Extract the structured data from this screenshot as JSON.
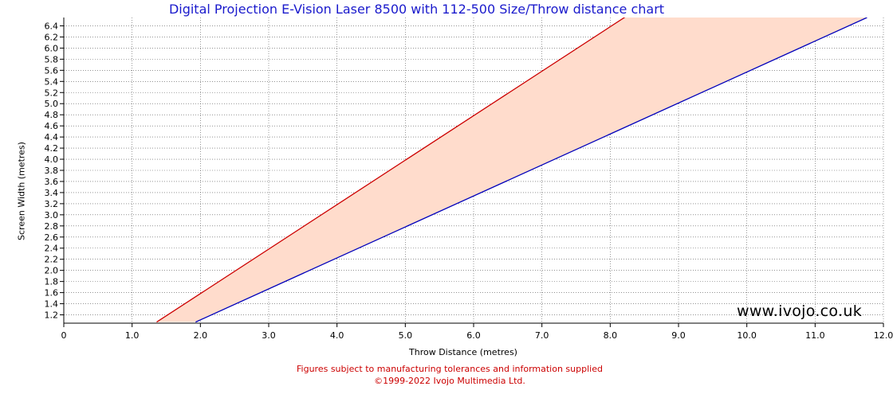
{
  "title": "Digital Projection E-Vision Laser 8500 with 112-500 Size/Throw distance chart",
  "watermark": "www.ivojo.co.uk",
  "footer": {
    "note": "Figures subject to manufacturing tolerances and information supplied",
    "copyright": "©1999-2022 Ivojo Multimedia Ltd."
  },
  "colors": {
    "title": "#1a1acc",
    "min_line": "#cc0000",
    "max_line": "#0000bb",
    "band_fill": "#ffdccc",
    "footer": "#cc0000"
  },
  "chart_data": {
    "type": "area",
    "title": "Digital Projection E-Vision Laser 8500 with 112-500 Size/Throw distance chart",
    "xlabel": "Throw Distance (metres)",
    "ylabel": "Screen Width (metres)",
    "xlim": [
      0,
      12
    ],
    "ylim": [
      1.05,
      6.55
    ],
    "x_ticks": [
      "0",
      "1.0",
      "2.0",
      "3.0",
      "4.0",
      "5.0",
      "6.0",
      "7.0",
      "8.0",
      "9.0",
      "10.0",
      "11.0",
      "12.0"
    ],
    "y_ticks": [
      "1.2",
      "1.4",
      "1.6",
      "1.8",
      "2.0",
      "2.2",
      "2.4",
      "2.6",
      "2.8",
      "3.0",
      "3.2",
      "3.4",
      "3.6",
      "3.8",
      "4.0",
      "4.2",
      "4.4",
      "4.6",
      "4.8",
      "5.0",
      "5.2",
      "5.4",
      "5.6",
      "5.8",
      "6.0",
      "6.2",
      "6.4"
    ],
    "grid": true,
    "series": [
      {
        "x": [
          1.36,
          8.22
        ],
        "y": [
          1.07,
          6.56
        ]
      },
      {
        "x": [
          1.93,
          11.76
        ],
        "y": [
          1.07,
          6.55
        ]
      }
    ]
  }
}
